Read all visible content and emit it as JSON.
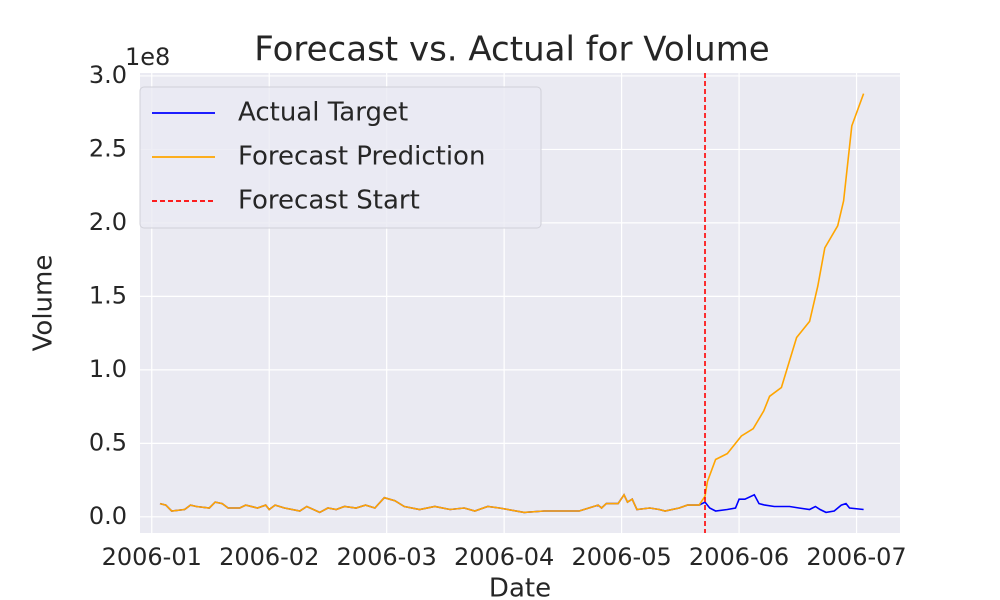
{
  "chart_data": {
    "type": "line",
    "title": "Forecast vs. Actual for Volume",
    "xlabel": "Date",
    "ylabel": "Volume",
    "offset_label": "1e8",
    "xlim": [
      -0.1,
      6.37
    ],
    "xticks": [
      {
        "value": 0,
        "label": "2006-01"
      },
      {
        "value": 1,
        "label": "2006-02"
      },
      {
        "value": 2,
        "label": "2006-03"
      },
      {
        "value": 3,
        "label": "2006-04"
      },
      {
        "value": 4,
        "label": "2006-05"
      },
      {
        "value": 5,
        "label": "2006-06"
      },
      {
        "value": 6,
        "label": "2006-07"
      }
    ],
    "ylim": [
      -0.11,
      3.02
    ],
    "yticks": [
      {
        "value": 0,
        "label": "0.0"
      },
      0.5,
      {
        "value": 1,
        "label": "1.0"
      },
      1.5,
      {
        "value": 2,
        "label": "2.0"
      },
      2.5,
      {
        "value": 3,
        "label": "3.0"
      }
    ],
    "grid": true,
    "legend": "upper left",
    "series": [
      {
        "name": "Actual Target",
        "color": "#0000ff",
        "x": [
          0.07,
          0.12,
          0.17,
          0.28,
          0.33,
          0.38,
          0.49,
          0.54,
          0.6,
          0.65,
          0.75,
          0.8,
          0.9,
          0.97,
          1.0,
          1.05,
          1.13,
          1.26,
          1.32,
          1.43,
          1.5,
          1.57,
          1.64,
          1.74,
          1.82,
          1.9,
          1.98,
          2.07,
          2.15,
          2.28,
          2.41,
          2.54,
          2.66,
          2.75,
          2.86,
          2.96,
          3.17,
          3.34,
          3.47,
          3.64,
          3.8,
          3.83,
          3.87,
          3.97,
          4.02,
          4.05,
          4.09,
          4.13,
          4.24,
          4.32,
          4.37,
          4.49,
          4.56,
          4.66,
          4.71,
          4.75,
          4.8,
          4.9,
          4.97,
          5.0,
          5.05,
          5.13,
          5.17,
          5.22,
          5.3,
          5.43,
          5.51,
          5.6,
          5.65,
          5.69,
          5.74,
          5.81,
          5.87,
          5.91,
          5.94,
          6.06
        ],
        "values": [
          0.09,
          0.08,
          0.04,
          0.05,
          0.08,
          0.07,
          0.06,
          0.1,
          0.09,
          0.06,
          0.06,
          0.08,
          0.06,
          0.08,
          0.05,
          0.08,
          0.06,
          0.04,
          0.07,
          0.03,
          0.06,
          0.05,
          0.07,
          0.06,
          0.08,
          0.06,
          0.13,
          0.11,
          0.07,
          0.05,
          0.07,
          0.05,
          0.06,
          0.04,
          0.07,
          0.06,
          0.03,
          0.04,
          0.04,
          0.04,
          0.08,
          0.06,
          0.09,
          0.09,
          0.15,
          0.1,
          0.12,
          0.05,
          0.06,
          0.05,
          0.04,
          0.06,
          0.08,
          0.08,
          0.1,
          0.06,
          0.04,
          0.05,
          0.06,
          0.12,
          0.12,
          0.15,
          0.09,
          0.08,
          0.07,
          0.07,
          0.06,
          0.05,
          0.07,
          0.05,
          0.03,
          0.04,
          0.08,
          0.09,
          0.06,
          0.05
        ]
      },
      {
        "name": "Forecast Prediction",
        "color": "#ffa500",
        "x": [
          0.07,
          0.12,
          0.17,
          0.28,
          0.33,
          0.38,
          0.49,
          0.54,
          0.6,
          0.65,
          0.75,
          0.8,
          0.9,
          0.97,
          1.0,
          1.05,
          1.13,
          1.26,
          1.32,
          1.43,
          1.5,
          1.57,
          1.64,
          1.74,
          1.82,
          1.9,
          1.98,
          2.07,
          2.15,
          2.28,
          2.41,
          2.54,
          2.66,
          2.75,
          2.86,
          2.96,
          3.17,
          3.34,
          3.47,
          3.64,
          3.8,
          3.83,
          3.87,
          3.97,
          4.02,
          4.05,
          4.09,
          4.13,
          4.24,
          4.32,
          4.37,
          4.49,
          4.56,
          4.66,
          4.71,
          4.73,
          4.8,
          4.9,
          5.02,
          5.12,
          5.21,
          5.26,
          5.36,
          5.49,
          5.6,
          5.67,
          5.73,
          5.84,
          5.89,
          5.96,
          6.06
        ],
        "values": [
          0.09,
          0.08,
          0.04,
          0.05,
          0.08,
          0.07,
          0.06,
          0.1,
          0.09,
          0.06,
          0.06,
          0.08,
          0.06,
          0.08,
          0.05,
          0.08,
          0.06,
          0.04,
          0.07,
          0.03,
          0.06,
          0.05,
          0.07,
          0.06,
          0.08,
          0.06,
          0.13,
          0.11,
          0.07,
          0.05,
          0.07,
          0.05,
          0.06,
          0.04,
          0.07,
          0.06,
          0.03,
          0.04,
          0.04,
          0.04,
          0.08,
          0.06,
          0.09,
          0.09,
          0.15,
          0.1,
          0.12,
          0.05,
          0.06,
          0.05,
          0.04,
          0.06,
          0.08,
          0.08,
          0.14,
          0.24,
          0.39,
          0.43,
          0.55,
          0.6,
          0.72,
          0.82,
          0.88,
          1.22,
          1.33,
          1.57,
          1.83,
          1.98,
          2.15,
          2.66,
          2.88
        ]
      }
    ],
    "vlines": [
      {
        "name": "Forecast Start",
        "x": 4.71,
        "color": "#ff0000",
        "dashed": true
      }
    ]
  }
}
